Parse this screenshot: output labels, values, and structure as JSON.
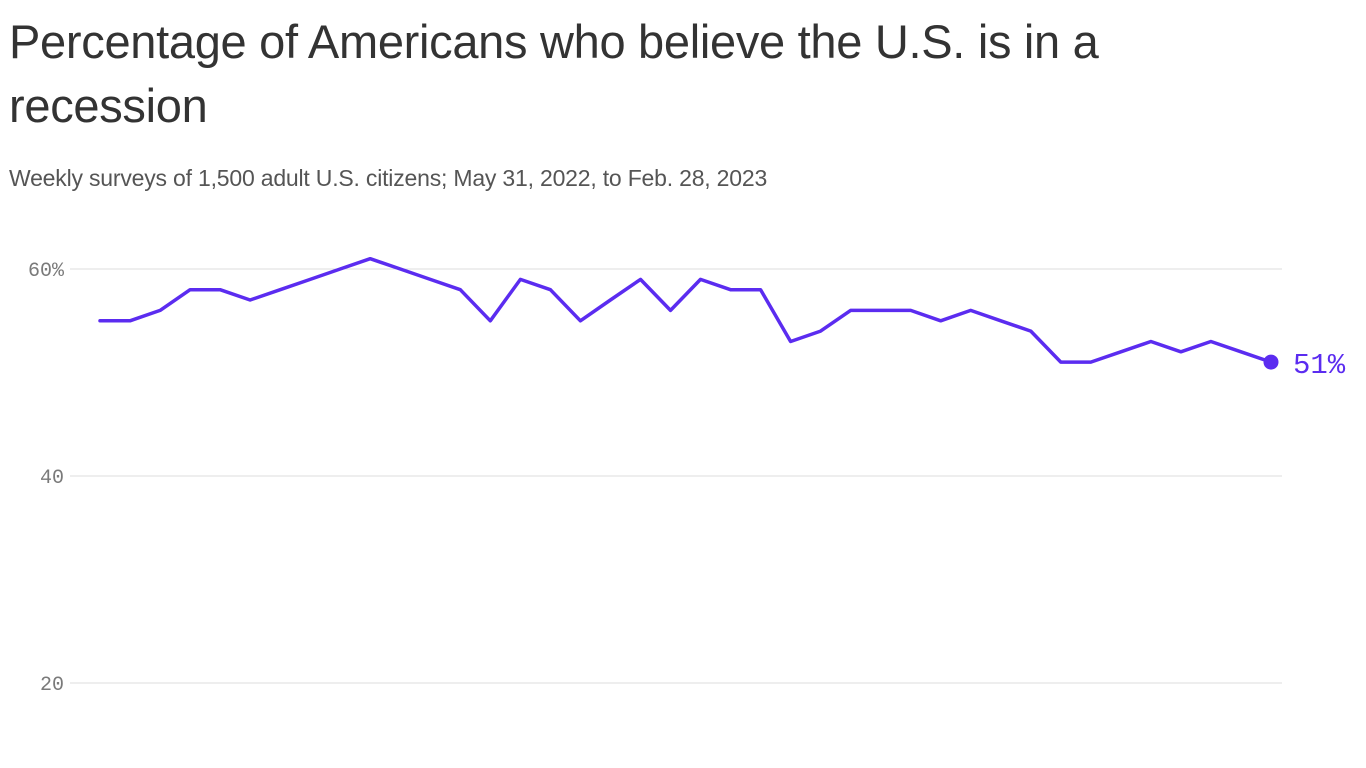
{
  "title": "Percentage of Americans who believe the U.S. is in a recession",
  "subtitle": "Weekly surveys of 1,500 adult U.S. citizens; May 31, 2022, to Feb. 28, 2023",
  "colors": {
    "line": "#5b2cf0",
    "grid": "#dcdcdc",
    "tick": "#7a7a7a"
  },
  "chart_data": {
    "type": "line",
    "title": "Percentage of Americans who believe the U.S. is in a recession",
    "subtitle": "Weekly surveys of 1,500 adult U.S. citizens; May 31, 2022, to Feb. 28, 2023",
    "xlabel": "",
    "ylabel": "",
    "x": [
      "2022-05-31",
      "2022-06-07",
      "2022-06-14",
      "2022-06-21",
      "2022-06-28",
      "2022-07-05",
      "2022-07-12",
      "2022-07-19",
      "2022-07-26",
      "2022-08-02",
      "2022-08-09",
      "2022-08-16",
      "2022-08-23",
      "2022-08-30",
      "2022-09-06",
      "2022-09-13",
      "2022-09-20",
      "2022-09-27",
      "2022-10-04",
      "2022-10-11",
      "2022-10-18",
      "2022-10-25",
      "2022-11-01",
      "2022-11-08",
      "2022-11-15",
      "2022-11-22",
      "2022-11-29",
      "2022-12-06",
      "2022-12-13",
      "2022-12-20",
      "2022-12-27",
      "2023-01-03",
      "2023-01-10",
      "2023-01-17",
      "2023-01-24",
      "2023-01-31",
      "2023-02-07",
      "2023-02-14",
      "2023-02-21",
      "2023-02-28"
    ],
    "series": [
      {
        "values": [
          55,
          55,
          56,
          58,
          58,
          57,
          58,
          59,
          60,
          61,
          60,
          59,
          58,
          55,
          59,
          58,
          55,
          57,
          59,
          56,
          59,
          58,
          58,
          53,
          54,
          56,
          56,
          56,
          55,
          56,
          55,
          54,
          51,
          51,
          52,
          53,
          52,
          53,
          52,
          51
        ]
      }
    ],
    "ylim": [
      20,
      60
    ],
    "yticks": [
      20,
      40,
      60
    ],
    "ytick_labels": [
      "20",
      "40",
      "60%"
    ],
    "grid": true,
    "end_label": "51%"
  }
}
